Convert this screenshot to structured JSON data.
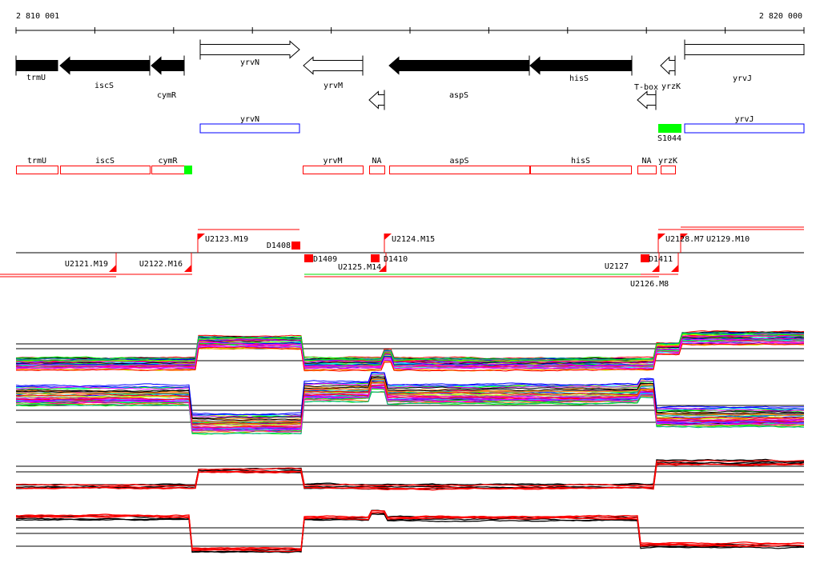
{
  "ruler": {
    "start_label": "2 810 001",
    "end_label": "2 820 000"
  },
  "genes": [
    "trmU",
    "iscS",
    "cymR",
    "yrvN",
    "yrvM",
    "NA",
    "aspS",
    "hisS",
    "T-box",
    "yrzK",
    "yrvJ"
  ],
  "annotation_track": {
    "blue_boxes": [
      "yrvN",
      "yrvJ"
    ],
    "green_box": "S1044"
  },
  "red_boxes": [
    "trmU",
    "iscS",
    "cymR",
    "yrvM",
    "NA",
    "aspS",
    "hisS",
    "NA",
    "yrzK"
  ],
  "segments": [
    "U2121.M19",
    "U2122.M16",
    "U2123.M19",
    "D1408",
    "D1409",
    "U2125.M14",
    "D1410",
    "U2124.M15",
    "U2127",
    "U2126.M8",
    "D1411",
    "U2128.M7",
    "U2129.M10"
  ],
  "colors": {
    "strand_rev": "#000000",
    "box_red": "#ff0000",
    "box_blue": "#0000ff",
    "green": "#00ff00"
  }
}
